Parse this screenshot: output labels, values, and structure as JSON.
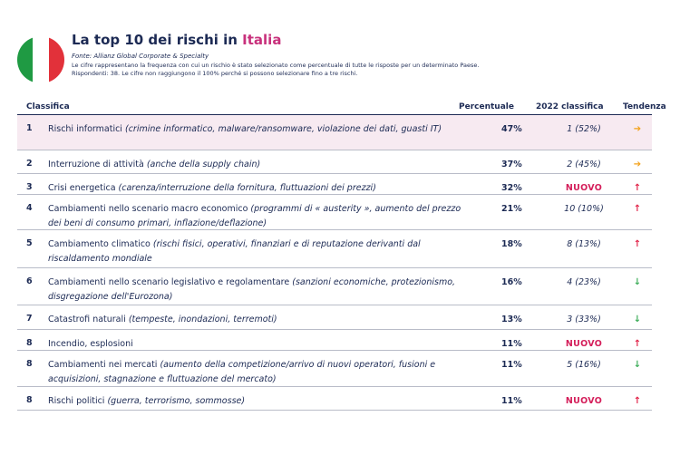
{
  "header": {
    "title_main": "La top 10 dei rischi in ",
    "title_highlight": "Italia",
    "source": "Fonte: Allianz Global Corporate & Specialty",
    "note_line1": "Le cifre rappresentano la frequenza con cui un rischio è stato selezionato come percentuale di tutte le risposte per un determinato Paese.",
    "note_line2": "Rispondenti: 38. Le cifre non raggiungono il 100% perché si possono selezionare fino a tre rischi."
  },
  "flag": {
    "colors": [
      "#1f9a43",
      "#ffffff",
      "#e2313a"
    ]
  },
  "columns": {
    "rank": "Classifica",
    "percent": "Percentuale",
    "rank2022": "2022 classifica",
    "trend": "Tendenza"
  },
  "colors": {
    "primary": "#1c2a54",
    "highlight": "#c8317c",
    "new": "#d41e5a",
    "up": "#e2264b",
    "down": "#3fae5b",
    "flat": "#f3a21c"
  },
  "rows": [
    {
      "rank": "1",
      "name": "Rischi informatici ",
      "detail": "(crimine informatico, malware/ransomware, violazione dei dati, guasti IT)",
      "pct": "47%",
      "prev": "1 (52%)",
      "trend_icon": "arrow-right",
      "trend_glyph": "➔"
    },
    {
      "rank": "2",
      "name": "Interruzione di attività ",
      "detail": "(anche della supply chain)",
      "pct": "37%",
      "prev": "2 (45%)",
      "trend_icon": "arrow-right",
      "trend_glyph": "➔"
    },
    {
      "rank": "3",
      "name": "Crisi energetica ",
      "detail": "(carenza/interruzione della fornitura, fluttuazioni dei prezzi)",
      "pct": "32%",
      "prev": "NUOVO",
      "trend_icon": "arrow-up",
      "trend_glyph": "↑"
    },
    {
      "rank": "4",
      "name": "Cambiamenti nello scenario macro economico ",
      "detail": "(programmi di « austerity », aumento del prezzo dei beni di consumo primari, inflazione/deflazione)",
      "pct": "21%",
      "prev": "10 (10%)",
      "trend_icon": "arrow-up",
      "trend_glyph": "↑"
    },
    {
      "rank": "5",
      "name": "Cambiamento climatico ",
      "detail": "(rischi fisici, operativi, finanziari e di reputazione derivanti dal riscaldamento mondiale",
      "pct": "18%",
      "prev": "8 (13%)",
      "trend_icon": "arrow-up",
      "trend_glyph": "↑"
    },
    {
      "rank": "6",
      "name": "Cambiamenti nello scenario legislativo e regolamentare ",
      "detail": "(sanzioni economiche, protezionismo, disgregazione dell'Eurozona)",
      "pct": "16%",
      "prev": "4 (23%)",
      "trend_icon": "arrow-down",
      "trend_glyph": "↓"
    },
    {
      "rank": "7",
      "name": "Catastrofi naturali ",
      "detail": "(tempeste, inondazioni, terremoti)",
      "pct": "13%",
      "prev": "3 (33%)",
      "trend_icon": "arrow-down",
      "trend_glyph": "↓"
    },
    {
      "rank": "8",
      "name": "Incendio, esplosioni",
      "detail": "",
      "pct": "11%",
      "prev": "NUOVO",
      "trend_icon": "arrow-up",
      "trend_glyph": "↑"
    },
    {
      "rank": "8",
      "name": "Cambiamenti nei mercati ",
      "detail": "(aumento della competizione/arrivo di nuovi operatori, fusioni e acquisizioni, stagnazione e fluttuazione del mercato)",
      "pct": "11%",
      "prev": "5 (16%)",
      "trend_icon": "arrow-down",
      "trend_glyph": "↓"
    },
    {
      "rank": "8",
      "name": "Rischi politici ",
      "detail": "(guerra, terrorismo, sommosse)",
      "pct": "11%",
      "prev": "NUOVO",
      "trend_icon": "arrow-up",
      "trend_glyph": "↑"
    }
  ]
}
